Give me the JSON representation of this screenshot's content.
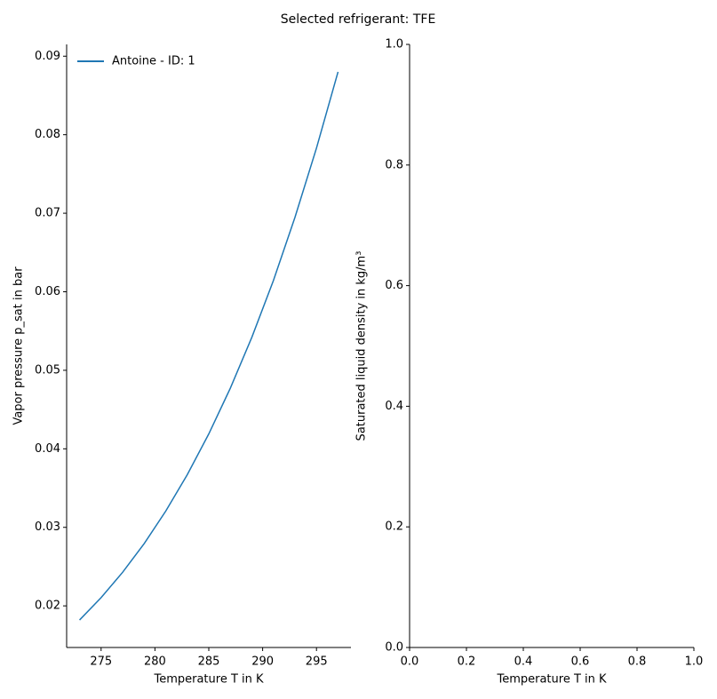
{
  "title": "Selected refrigerant: TFE",
  "chart_data": [
    {
      "type": "line",
      "xlabel": "Temperature T in K",
      "ylabel": "Vapor pressure p_sat in bar",
      "x": [
        273,
        275,
        277,
        279,
        281,
        283,
        285,
        287,
        289,
        291,
        293,
        295,
        297
      ],
      "series": [
        {
          "name": "Antoine - ID: 1",
          "color": "#1f77b4",
          "values": [
            0.0182,
            0.02105,
            0.02428,
            0.02793,
            0.03206,
            0.0367,
            0.0419,
            0.04772,
            0.05421,
            0.06143,
            0.06947,
            0.0783,
            0.088
          ]
        }
      ],
      "xlim": [
        271.8,
        298.2
      ],
      "xticks": [
        275,
        280,
        285,
        290,
        295
      ],
      "ylim": [
        0.0147,
        0.0915
      ],
      "yticks": [
        0.02,
        0.03,
        0.04,
        0.05,
        0.06,
        0.07,
        0.08,
        0.09
      ],
      "legend": "upper left"
    },
    {
      "type": "line",
      "xlabel": "Temperature T in K",
      "ylabel": "Saturated liquid density in kg/m³",
      "x": [],
      "series": [],
      "xlim": [
        0,
        1
      ],
      "xticks": [
        {
          "value": 0,
          "label": "0.0"
        },
        0.2,
        0.4,
        0.6,
        0.8,
        {
          "value": 1,
          "label": "1.0"
        }
      ],
      "ylim": [
        0,
        1
      ],
      "yticks": [
        {
          "value": 0,
          "label": "0.0"
        },
        0.2,
        0.4,
        0.6,
        0.8,
        {
          "value": 1,
          "label": "1.0"
        }
      ]
    }
  ]
}
